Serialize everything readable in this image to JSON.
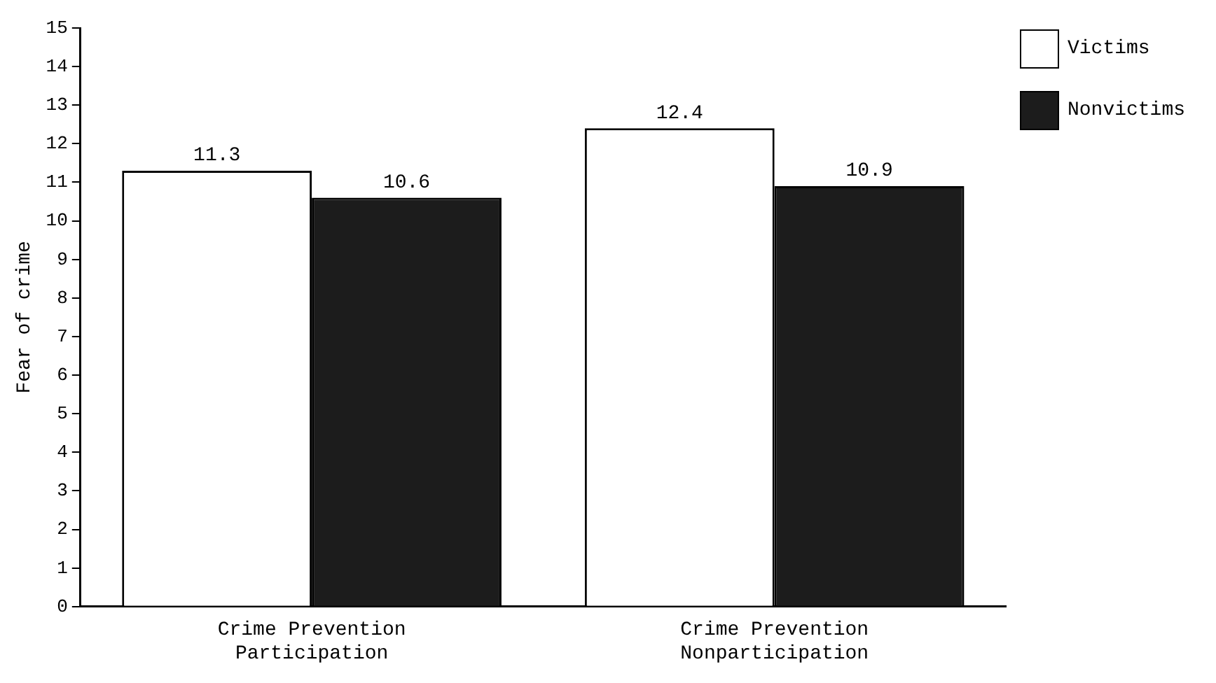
{
  "chart_data": {
    "type": "bar",
    "ylabel": "Fear of crime",
    "categories": [
      "Crime Prevention Participation",
      "Crime Prevention Nonparticipation"
    ],
    "series": [
      {
        "name": "Victims",
        "color": "#ffffff",
        "values": [
          11.3,
          12.4
        ]
      },
      {
        "name": "Nonvictims",
        "color": "#1c1c1c",
        "values": [
          10.6,
          10.9
        ]
      }
    ],
    "ylim": [
      0,
      15
    ],
    "yticks": [
      0,
      1,
      2,
      3,
      4,
      5,
      6,
      7,
      8,
      9,
      10,
      11,
      12,
      13,
      14,
      15
    ],
    "grid": false,
    "legend": "top right",
    "data_labels": true
  }
}
